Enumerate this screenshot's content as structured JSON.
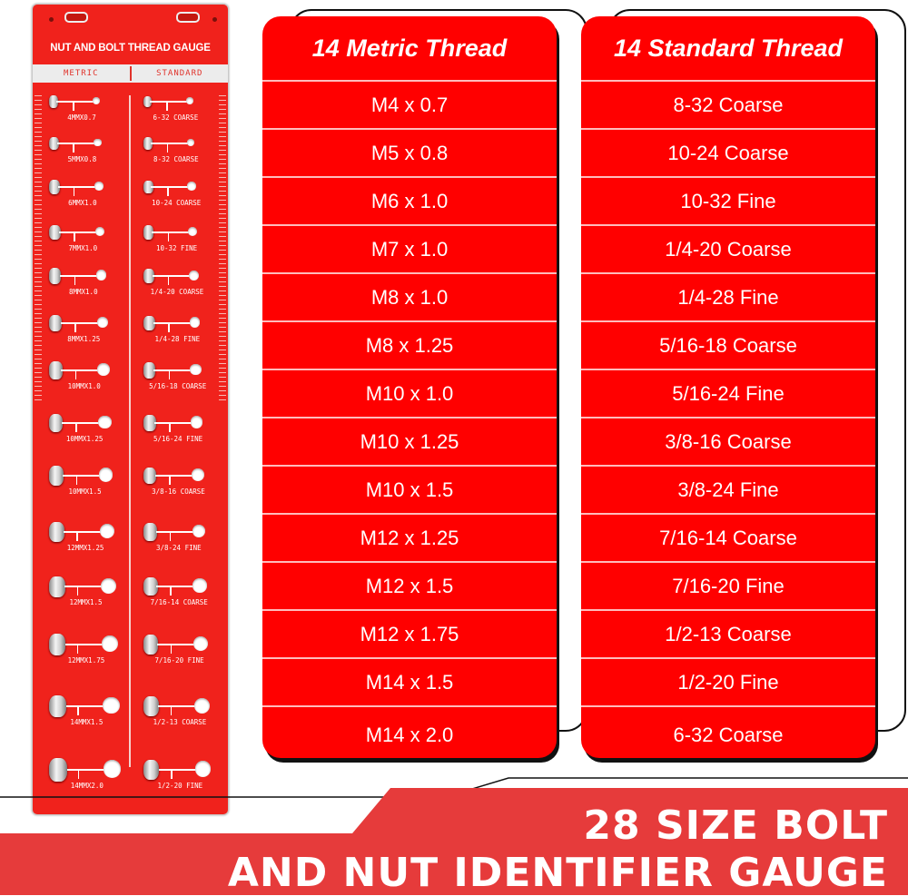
{
  "gauge": {
    "title": "NUT AND BOLT THREAD GAUGE",
    "tab_metric": "METRIC",
    "tab_standard": "STANDARD",
    "metric_labels": [
      "4MMX0.7",
      "5MMX0.8",
      "6MMX1.0",
      "7MMX1.0",
      "8MMX1.0",
      "8MMX1.25",
      "10MMX1.0",
      "10MMX1.25",
      "10MMX1.5",
      "12MMX1.25",
      "12MMX1.5",
      "12MMX1.75",
      "14MMX1.5",
      "14MMX2.0"
    ],
    "standard_labels": [
      "6-32 COARSE",
      "8-32 COARSE",
      "10-24 COARSE",
      "10-32 FINE",
      "1/4-20 COARSE",
      "1/4-28 FINE",
      "5/16-18 COARSE",
      "5/16-24 FINE",
      "3/8-16 COARSE",
      "3/8-24 FINE",
      "7/16-14 COARSE",
      "7/16-20 FINE",
      "1/2-13 COARSE",
      "1/2-20 FINE"
    ],
    "plate_color": "#f0221c"
  },
  "metric_table": {
    "header": "14 Metric Thread",
    "rows": [
      "M4 x 0.7",
      "M5 x 0.8",
      "M6 x 1.0",
      "M7 x 1.0",
      "M8 x 1.0",
      "M8 x 1.25",
      "M10 x 1.0",
      "M10 x 1.25",
      "M10 x 1.5",
      "M12 x 1.25",
      "M12 x 1.5",
      "M12 x 1.75",
      "M14 x 1.5",
      "M14 x 2.0"
    ]
  },
  "standard_table": {
    "header": "14 Standard Thread",
    "rows": [
      "8-32 Coarse",
      "10-24 Coarse",
      "10-32 Fine",
      "1/4-20 Coarse",
      "1/4-28 Fine",
      "5/16-18 Coarse",
      "5/16-24 Fine",
      "3/8-16 Coarse",
      "3/8-24 Fine",
      "7/16-14 Coarse",
      "7/16-20 Fine",
      "1/2-13 Coarse",
      "1/2-20 Fine",
      "6-32 Coarse"
    ]
  },
  "banner": {
    "line1": "28 SIZE BOLT",
    "line2": "AND NUT IDENTIFIER GAUGE",
    "color": "#e63b3b"
  },
  "table_color": "#ff0000"
}
